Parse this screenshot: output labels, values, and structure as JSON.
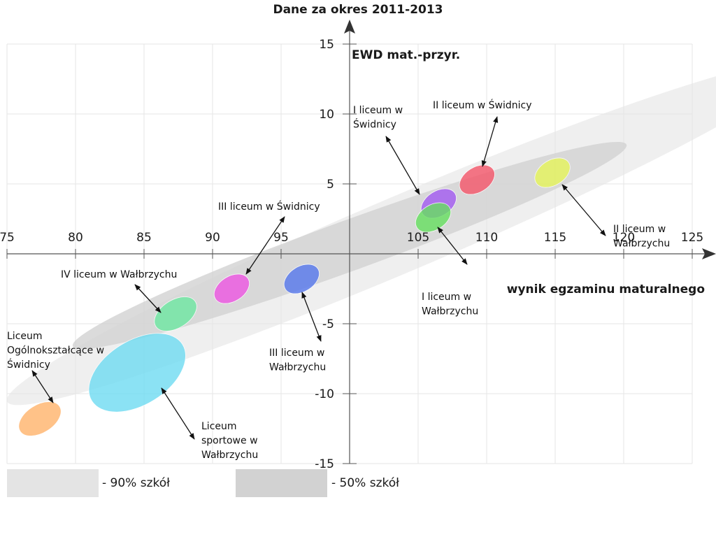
{
  "chart_data": {
    "type": "scatter",
    "title": "Dane za okres 2011-2013",
    "xlabel": "wynik egzaminu maturalnego",
    "ylabel": "EWD mat.-przyr.",
    "xlim": [
      75,
      125
    ],
    "ylim": [
      -15,
      15
    ],
    "x_ticks": [
      75,
      80,
      85,
      90,
      95,
      105,
      110,
      115,
      120,
      125
    ],
    "y_ticks": [
      15,
      10,
      5,
      -5,
      -10,
      -15
    ],
    "grid": true,
    "bands": [
      {
        "name": "- 90% szkół",
        "color": "#e4e4e4",
        "cx": 104,
        "cy": 1.5,
        "rx": 31.5,
        "ry": 2.7,
        "angle_deg": -23
      },
      {
        "name": "- 50% szkół",
        "color": "#d2d2d2",
        "cx": 100,
        "cy": 0.6,
        "rx": 21.5,
        "ry": 1.8,
        "angle_deg": -20
      }
    ],
    "schools": [
      {
        "label": [
          "I liceum w",
          "Świdnicy"
        ],
        "x": 106.5,
        "y": 3.6,
        "color": "#a35af2",
        "rx": 1.4,
        "ry": 0.9
      },
      {
        "label": [
          "II liceum w Świdnicy"
        ],
        "x": 109.3,
        "y": 5.3,
        "color": "#f5566a",
        "rx": 1.4,
        "ry": 0.9
      },
      {
        "label": [
          "II liceum w",
          "Wałbrzychu"
        ],
        "x": 114.8,
        "y": 5.8,
        "color": "#e6f55a",
        "rx": 1.4,
        "ry": 0.9
      },
      {
        "label": [
          "I liceum w",
          "Wałbrzychu"
        ],
        "x": 106.1,
        "y": 2.6,
        "color": "#66e060",
        "rx": 1.4,
        "ry": 0.9
      },
      {
        "label": [
          "III liceum w Świdnicy"
        ],
        "x": 91.4,
        "y": -2.5,
        "color": "#ee55e3",
        "rx": 1.4,
        "ry": 0.9
      },
      {
        "label": [
          "III liceum w",
          "Wałbrzychu"
        ],
        "x": 96.5,
        "y": -1.8,
        "color": "#5577ec",
        "rx": 1.4,
        "ry": 0.9
      },
      {
        "label": [
          "IV liceum w Wałbrzychu"
        ],
        "x": 87.3,
        "y": -4.3,
        "color": "#6de8a2",
        "rx": 1.7,
        "ry": 1.0
      },
      {
        "label": [
          "Liceum",
          "sportowe w",
          "Wałbrzychu"
        ],
        "x": 84.5,
        "y": -8.5,
        "color": "#6fdcf2",
        "rx": 3.9,
        "ry": 2.3
      },
      {
        "label": [
          "Liceum",
          "Ogólnokształcące w",
          "Świdnicy"
        ],
        "x": 77.4,
        "y": -11.8,
        "color": "#ffb36b",
        "rx": 1.7,
        "ry": 1.0
      }
    ]
  }
}
